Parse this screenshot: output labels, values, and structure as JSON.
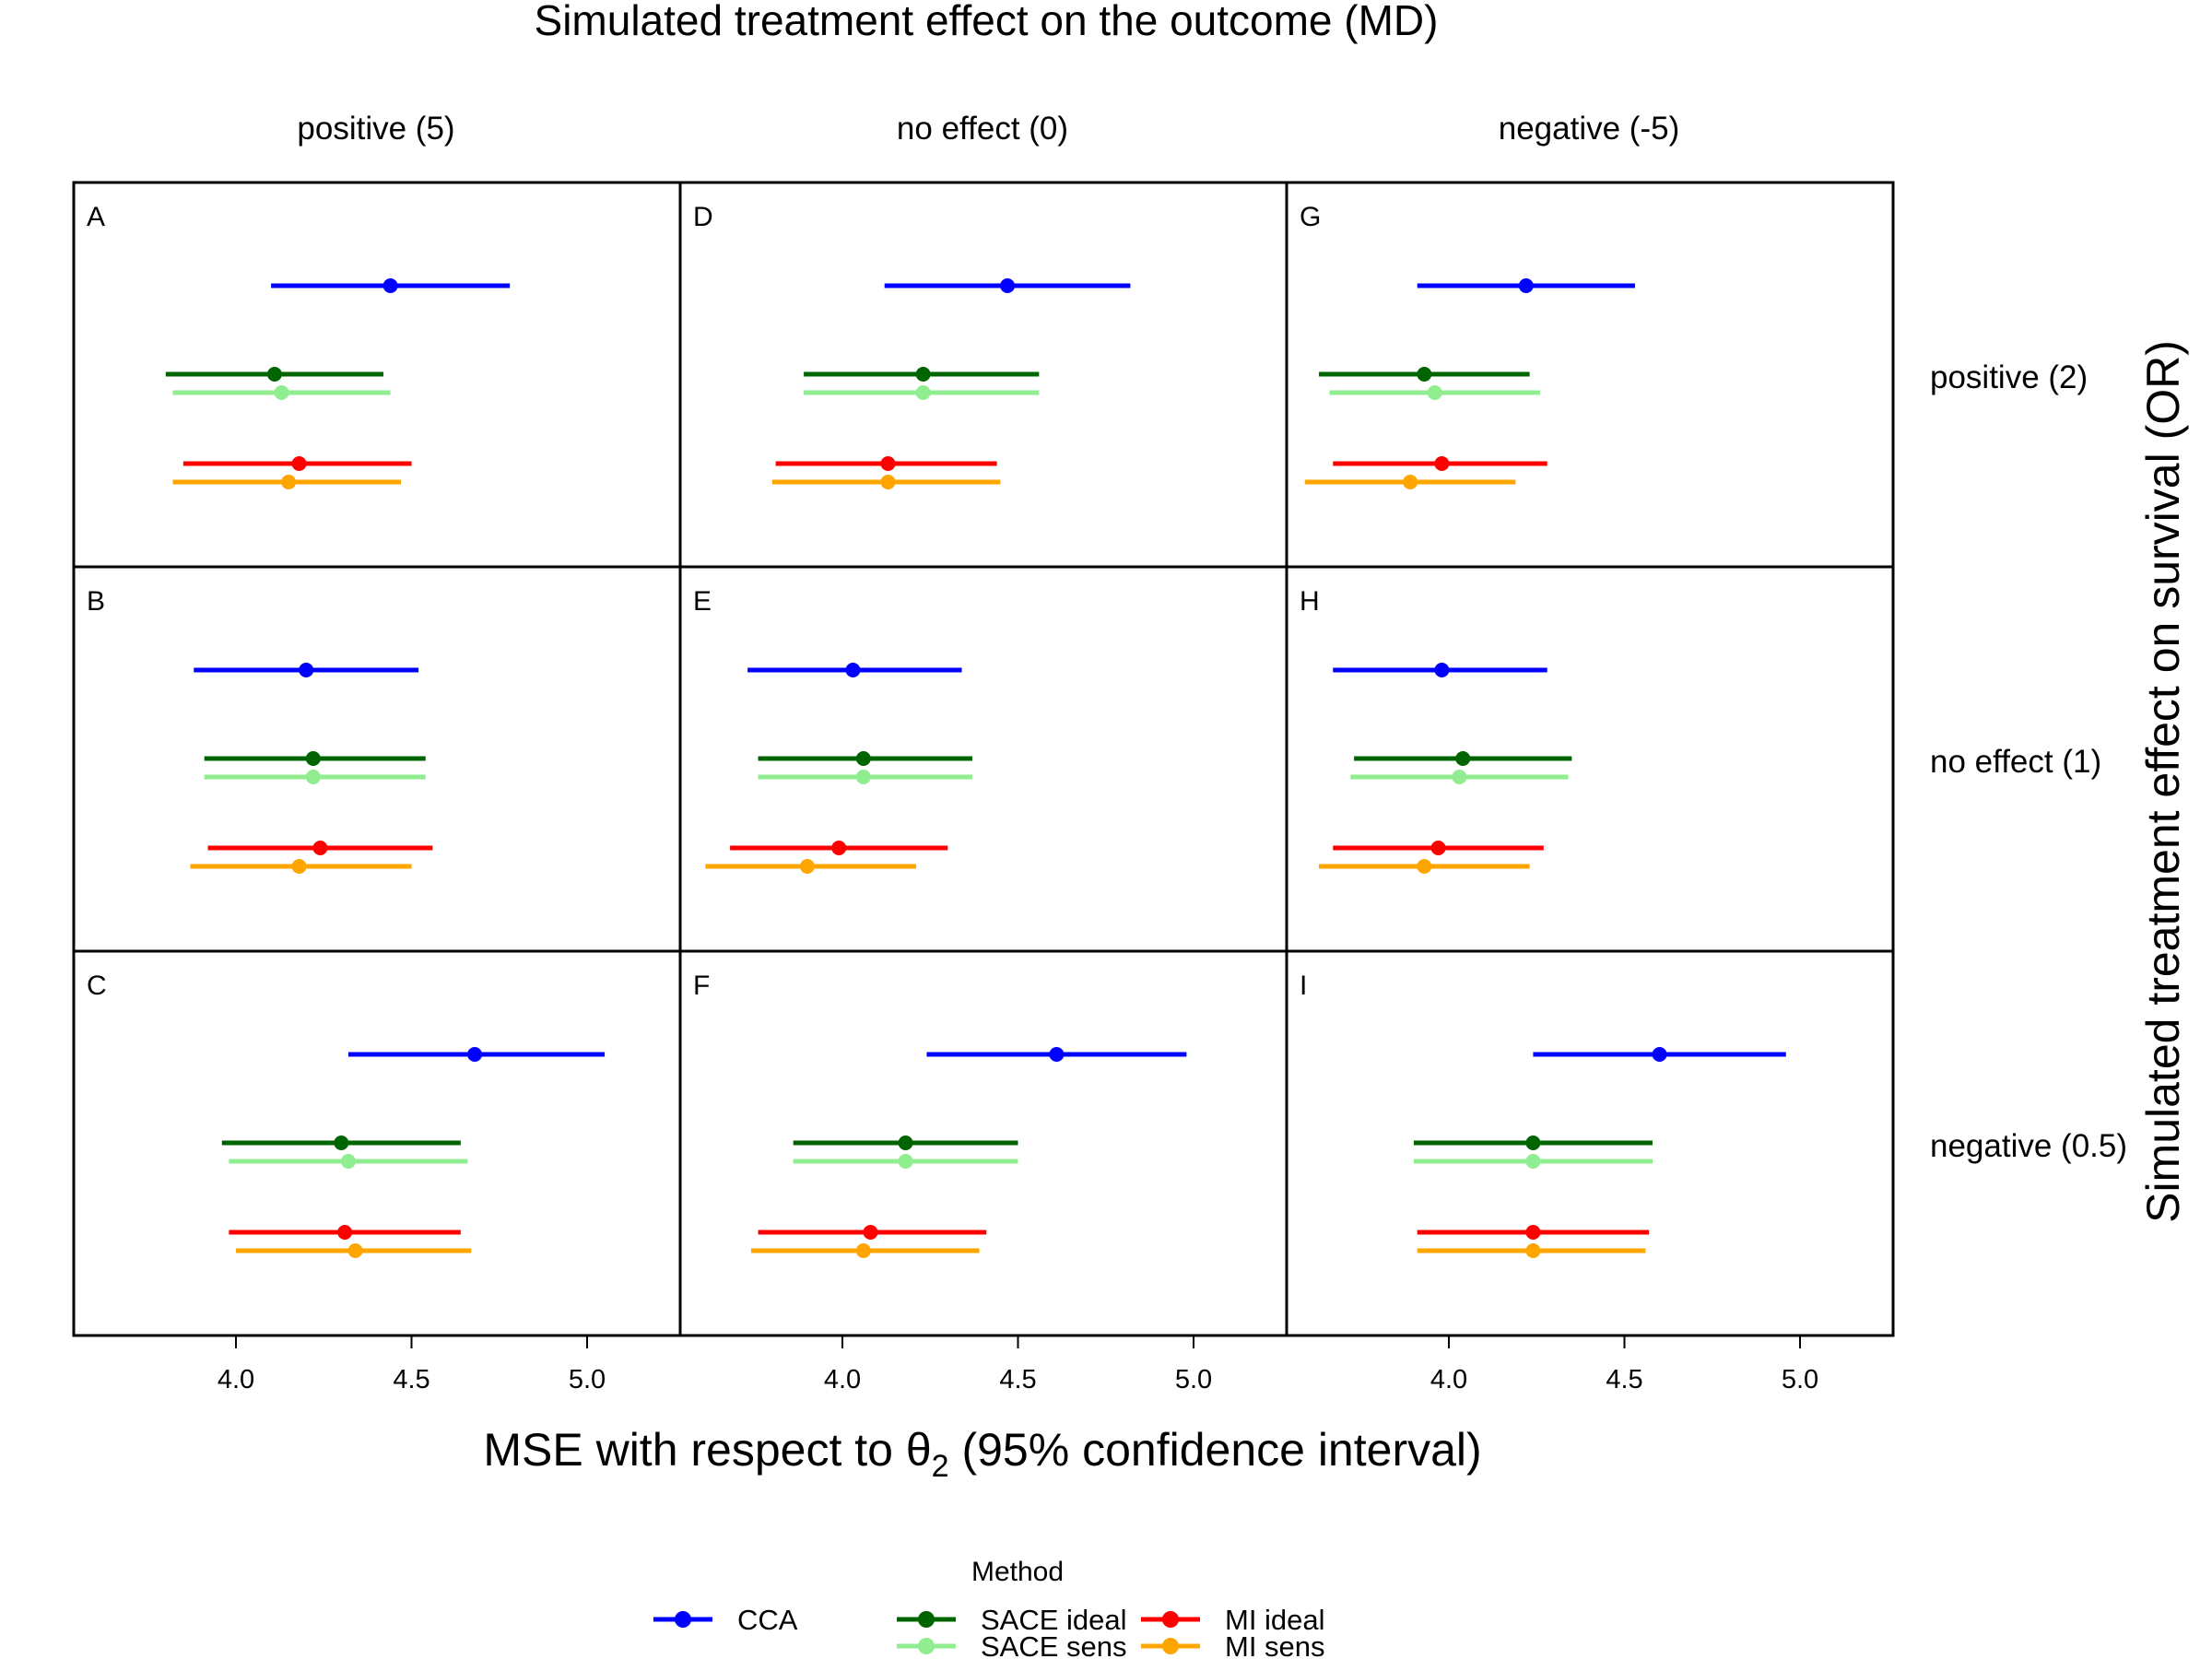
{
  "chart_data": {
    "type": "forest",
    "title": "Simulated treatment effect on the outcome (MD)",
    "xlabel_main": "MSE with respect to θ",
    "xlabel_sub": "2",
    "xlabel_rest": " (95% confidence interval)",
    "ylabel": "Simulated treatment effect on survival (OR)",
    "columns": [
      "positive (5)",
      "no effect (0)",
      "negative (-5)"
    ],
    "rows": [
      "positive (2)",
      "no effect (1)",
      "negative (0.5)"
    ],
    "xticks": [
      "4.0",
      "4.5",
      "5.0"
    ],
    "xlim": [
      3.54,
      5.27
    ],
    "grid": false,
    "legend": {
      "title": "Method",
      "position": "bottom",
      "items": [
        {
          "label": "CCA",
          "color": "#0000ff"
        },
        {
          "label": "SACE ideal",
          "color": "#006400"
        },
        {
          "label": "SACE sens",
          "color": "#90ee90"
        },
        {
          "label": "MI ideal",
          "color": "#ff0000"
        },
        {
          "label": "MI sens",
          "color": "#ffa500"
        }
      ]
    },
    "series": [
      {
        "name": "CCA",
        "color": "#0000ff"
      },
      {
        "name": "SACE ideal",
        "color": "#006400"
      },
      {
        "name": "SACE sens",
        "color": "#90ee90"
      },
      {
        "name": "MI ideal",
        "color": "#ff0000"
      },
      {
        "name": "MI sens",
        "color": "#ffa500"
      }
    ],
    "panels": [
      {
        "label": "A",
        "col": 0,
        "row": 0,
        "est": [
          4.44,
          4.11,
          4.13,
          4.18,
          4.15
        ],
        "lo": [
          4.1,
          3.8,
          3.82,
          3.85,
          3.82
        ],
        "hi": [
          4.78,
          4.42,
          4.44,
          4.5,
          4.47
        ]
      },
      {
        "label": "D",
        "col": 1,
        "row": 0,
        "est": [
          4.47,
          4.23,
          4.23,
          4.13,
          4.13
        ],
        "lo": [
          4.12,
          3.89,
          3.89,
          3.81,
          3.8
        ],
        "hi": [
          4.82,
          4.56,
          4.56,
          4.44,
          4.45
        ]
      },
      {
        "label": "G",
        "col": 2,
        "row": 0,
        "est": [
          4.22,
          3.93,
          3.96,
          3.98,
          3.89
        ],
        "lo": [
          3.91,
          3.63,
          3.66,
          3.67,
          3.59
        ],
        "hi": [
          4.53,
          4.23,
          4.26,
          4.28,
          4.19
        ]
      },
      {
        "label": "B",
        "col": 0,
        "row": 1,
        "est": [
          4.2,
          4.22,
          4.22,
          4.24,
          4.18
        ],
        "lo": [
          3.88,
          3.91,
          3.91,
          3.92,
          3.87
        ],
        "hi": [
          4.52,
          4.54,
          4.54,
          4.56,
          4.5
        ]
      },
      {
        "label": "E",
        "col": 1,
        "row": 1,
        "est": [
          4.03,
          4.06,
          4.06,
          3.99,
          3.9
        ],
        "lo": [
          3.73,
          3.76,
          3.76,
          3.68,
          3.61
        ],
        "hi": [
          4.34,
          4.37,
          4.37,
          4.3,
          4.21
        ]
      },
      {
        "label": "H",
        "col": 2,
        "row": 1,
        "est": [
          3.98,
          4.04,
          4.03,
          3.97,
          3.93
        ],
        "lo": [
          3.67,
          3.73,
          3.72,
          3.67,
          3.63
        ],
        "hi": [
          4.28,
          4.35,
          4.34,
          4.27,
          4.23
        ]
      },
      {
        "label": "C",
        "col": 0,
        "row": 2,
        "est": [
          4.68,
          4.3,
          4.32,
          4.31,
          4.34
        ],
        "lo": [
          4.32,
          3.96,
          3.98,
          3.98,
          4.0
        ],
        "hi": [
          5.05,
          4.64,
          4.66,
          4.64,
          4.67
        ]
      },
      {
        "label": "F",
        "col": 1,
        "row": 2,
        "est": [
          4.61,
          4.18,
          4.18,
          4.08,
          4.06
        ],
        "lo": [
          4.24,
          3.86,
          3.86,
          3.76,
          3.74
        ],
        "hi": [
          4.98,
          4.5,
          4.5,
          4.41,
          4.39
        ]
      },
      {
        "label": "I",
        "col": 2,
        "row": 2,
        "est": [
          4.6,
          4.24,
          4.24,
          4.24,
          4.24
        ],
        "lo": [
          4.24,
          3.9,
          3.9,
          3.91,
          3.91
        ],
        "hi": [
          4.96,
          4.58,
          4.58,
          4.57,
          4.56
        ]
      }
    ]
  }
}
